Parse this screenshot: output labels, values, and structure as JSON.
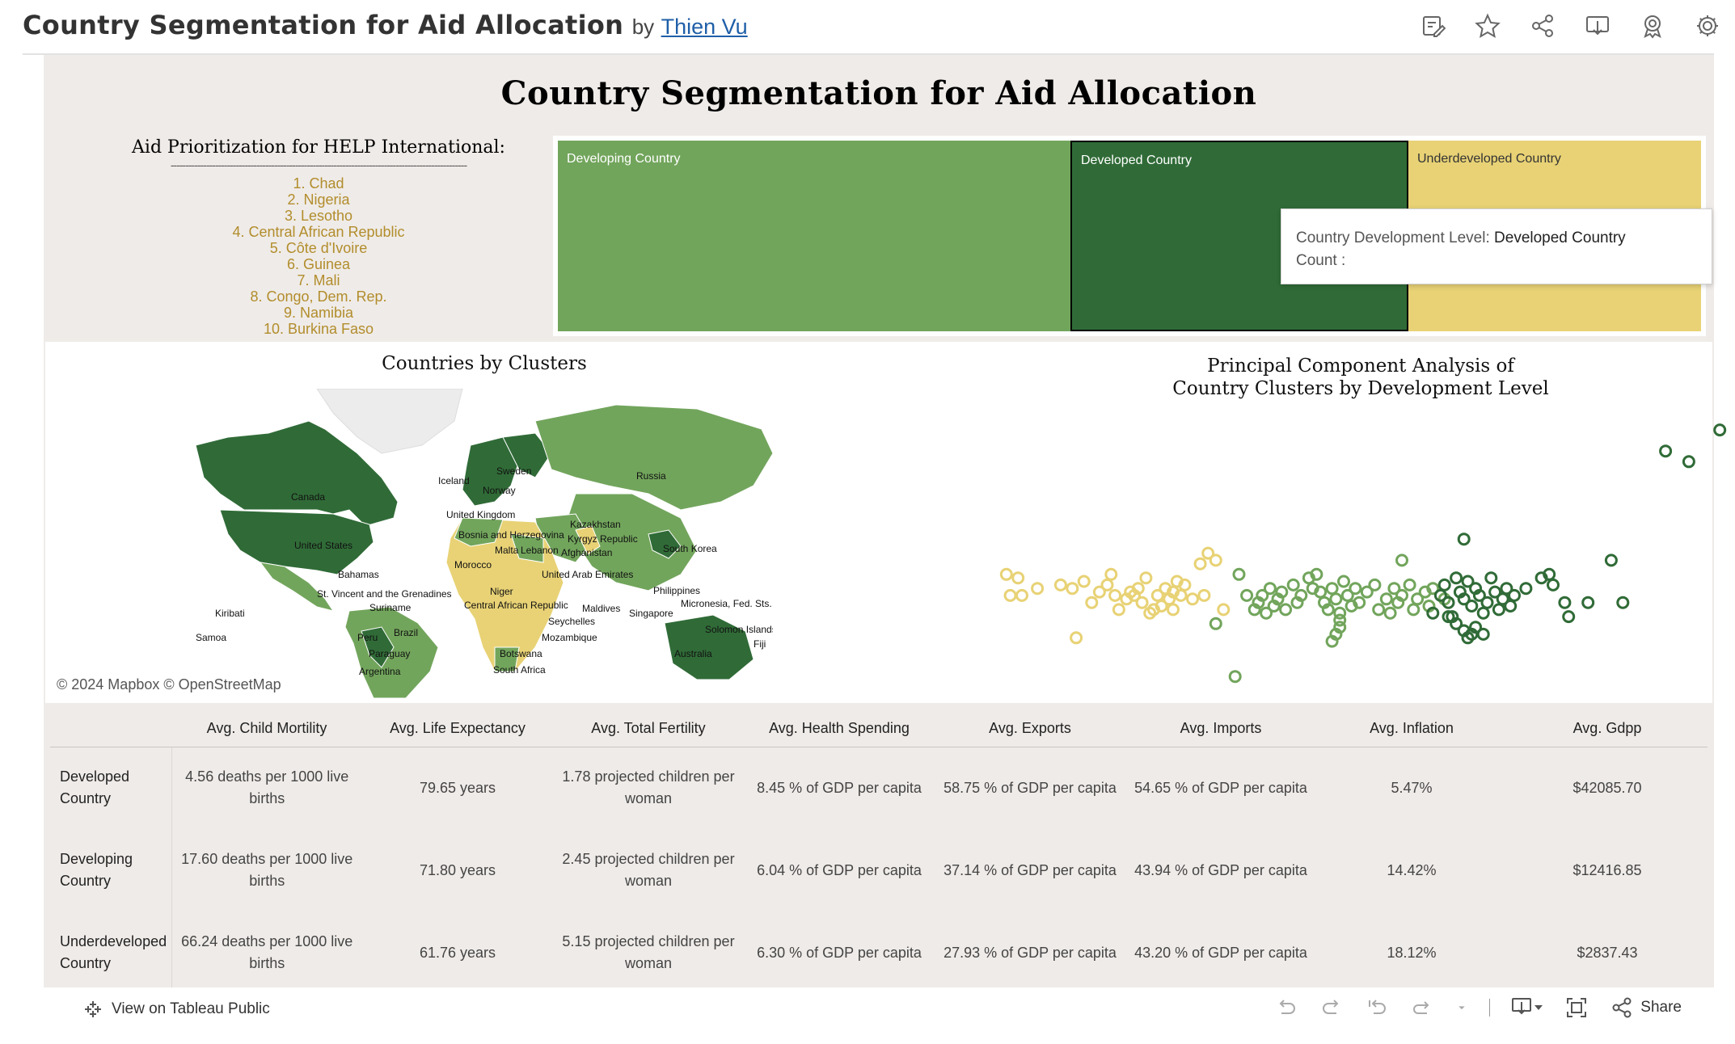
{
  "header": {
    "title": "Country Segmentation for Aid Allocation",
    "by": "by",
    "author": "Thien Vu",
    "icons": [
      "edit-icon",
      "star-icon",
      "share-icon",
      "download-icon",
      "badge-icon",
      "gear-icon"
    ]
  },
  "dashboard": {
    "title": "Country Segmentation for Aid Allocation"
  },
  "priority": {
    "title": "Aid Prioritization for HELP International:",
    "divider": "----------------------------------------------------------------------------------------------------",
    "items": [
      "1. Chad",
      "2. Nigeria",
      "3. Lesotho",
      "4. Central African Republic",
      "5. Côte d'Ivoire",
      "6. Guinea",
      "7. Mali",
      "8. Congo, Dem. Rep.",
      "9. Namibia",
      "10. Burkina Faso"
    ]
  },
  "treemap": {
    "cells": [
      {
        "label": "Developing Country",
        "color": "#72a55c"
      },
      {
        "label": "Developed Country",
        "color": "#306b37"
      },
      {
        "label": "Underdeveloped Country",
        "color": "#e8d275"
      }
    ]
  },
  "tooltip": {
    "level_label": "Country Development Level:",
    "level_value": "Developed Country",
    "count_label": "Count :"
  },
  "map": {
    "title": "Countries by Clusters",
    "credit": "© 2024 Mapbox  © OpenStreetMap",
    "labels": [
      "Canada",
      "United States",
      "Russia",
      "Iceland",
      "Sweden",
      "Norway",
      "United Kingdom",
      "Bosnia and Herzegovina",
      "Kazakhstan",
      "Kyrgyz Republic",
      "Malta",
      "Lebanon",
      "Afghanistan",
      "South Korea",
      "Morocco",
      "United Arab Emirates",
      "Bahamas",
      "St. Vincent and the Grenadines",
      "Niger",
      "Philippines",
      "Kiribati",
      "Suriname",
      "Central African Republic",
      "Maldives",
      "Singapore",
      "Micronesia, Fed. Sts.",
      "Samoa",
      "Brazil",
      "Seychelles",
      "Solomon Islands",
      "Peru",
      "Mozambique",
      "Paraguay",
      "Botswana",
      "Australia",
      "Argentina",
      "South Africa",
      "Fiji"
    ],
    "colors": {
      "developed": "#306b37",
      "developing": "#72a55c",
      "under": "#e8d275"
    }
  },
  "pca": {
    "title_line1": "Principal Component Analysis of",
    "title_line2": "Country Clusters by Development Level"
  },
  "chart_data": {
    "type": "scatter",
    "title": "Principal Component Analysis of Country Clusters by Development Level",
    "xlabel": "",
    "ylabel": "",
    "series": [
      {
        "name": "Underdeveloped Country",
        "color": "#e8d275",
        "points": [
          [
            -4.2,
            1.1
          ],
          [
            -4.05,
            1.05
          ],
          [
            -4.15,
            0.8
          ],
          [
            -4.0,
            0.8
          ],
          [
            -3.8,
            0.9
          ],
          [
            -3.5,
            0.95
          ],
          [
            -3.35,
            0.9
          ],
          [
            -3.2,
            1.0
          ],
          [
            -3.1,
            0.7
          ],
          [
            -3.0,
            0.85
          ],
          [
            -2.9,
            0.95
          ],
          [
            -2.85,
            1.1
          ],
          [
            -2.8,
            0.8
          ],
          [
            -2.75,
            0.6
          ],
          [
            -2.65,
            0.75
          ],
          [
            -2.6,
            0.85
          ],
          [
            -2.5,
            0.9
          ],
          [
            -2.45,
            0.7
          ],
          [
            -2.4,
            1.05
          ],
          [
            -2.3,
            0.6
          ],
          [
            -2.25,
            0.8
          ],
          [
            -2.2,
            0.65
          ],
          [
            -2.15,
            0.9
          ],
          [
            -2.1,
            0.75
          ],
          [
            -2.05,
            0.85
          ],
          [
            -2.0,
            1.0
          ],
          [
            -1.95,
            0.8
          ],
          [
            -1.9,
            0.95
          ],
          [
            -1.8,
            0.75
          ],
          [
            -1.7,
            1.25
          ],
          [
            -1.65,
            0.8
          ],
          [
            -1.6,
            1.4
          ],
          [
            -1.5,
            1.3
          ],
          [
            -3.3,
            0.2
          ],
          [
            -1.4,
            0.6
          ],
          [
            -2.05,
            0.6
          ],
          [
            -2.35,
            0.55
          ],
          [
            -2.55,
            0.8
          ]
        ]
      },
      {
        "name": "Developing Country",
        "color": "#72a55c",
        "points": [
          [
            -1.5,
            0.4
          ],
          [
            -1.2,
            1.1
          ],
          [
            -1.1,
            0.8
          ],
          [
            -1.0,
            0.6
          ],
          [
            -0.95,
            0.7
          ],
          [
            -0.9,
            0.8
          ],
          [
            -0.85,
            0.55
          ],
          [
            -0.8,
            0.9
          ],
          [
            -0.75,
            0.65
          ],
          [
            -0.7,
            0.75
          ],
          [
            -0.65,
            0.85
          ],
          [
            -0.6,
            0.6
          ],
          [
            -0.5,
            0.95
          ],
          [
            -0.45,
            0.7
          ],
          [
            -0.4,
            0.8
          ],
          [
            -0.3,
            1.05
          ],
          [
            -0.25,
            0.9
          ],
          [
            -0.2,
            1.1
          ],
          [
            -0.15,
            0.85
          ],
          [
            -0.1,
            0.7
          ],
          [
            -0.05,
            0.6
          ],
          [
            0.0,
            0.9
          ],
          [
            0.05,
            0.75
          ],
          [
            0.1,
            0.55
          ],
          [
            0.1,
            0.45
          ],
          [
            0.1,
            0.35
          ],
          [
            0.05,
            0.25
          ],
          [
            0.0,
            0.15
          ],
          [
            0.15,
            1.0
          ],
          [
            0.2,
            0.8
          ],
          [
            0.25,
            0.65
          ],
          [
            0.3,
            0.9
          ],
          [
            0.35,
            0.7
          ],
          [
            0.45,
            0.85
          ],
          [
            0.55,
            0.95
          ],
          [
            0.6,
            0.6
          ],
          [
            0.7,
            0.75
          ],
          [
            0.75,
            0.55
          ],
          [
            0.8,
            0.9
          ],
          [
            0.85,
            0.7
          ],
          [
            0.9,
            0.8
          ],
          [
            1.0,
            0.95
          ],
          [
            1.05,
            0.6
          ],
          [
            1.1,
            0.75
          ],
          [
            1.2,
            0.85
          ],
          [
            1.25,
            0.65
          ],
          [
            1.3,
            0.9
          ],
          [
            0.9,
            1.3
          ],
          [
            1.45,
            0.75
          ],
          [
            -1.25,
            -0.35
          ]
        ]
      },
      {
        "name": "Developed Country",
        "color": "#306b37",
        "points": [
          [
            1.3,
            0.55
          ],
          [
            1.4,
            0.8
          ],
          [
            1.45,
            0.95
          ],
          [
            1.5,
            0.7
          ],
          [
            1.55,
            0.5
          ],
          [
            1.6,
            1.05
          ],
          [
            1.65,
            0.85
          ],
          [
            1.7,
            0.75
          ],
          [
            1.7,
            1.6
          ],
          [
            1.75,
            1.0
          ],
          [
            1.8,
            0.65
          ],
          [
            1.85,
            0.9
          ],
          [
            1.9,
            0.8
          ],
          [
            1.95,
            0.55
          ],
          [
            2.0,
            0.7
          ],
          [
            2.05,
            1.05
          ],
          [
            2.1,
            0.85
          ],
          [
            2.15,
            0.6
          ],
          [
            2.2,
            0.75
          ],
          [
            2.25,
            0.9
          ],
          [
            2.3,
            0.65
          ],
          [
            2.35,
            0.8
          ],
          [
            1.5,
            0.5
          ],
          [
            1.6,
            0.4
          ],
          [
            1.7,
            0.3
          ],
          [
            1.75,
            0.2
          ],
          [
            1.8,
            0.25
          ],
          [
            1.85,
            0.35
          ],
          [
            1.95,
            0.25
          ],
          [
            2.5,
            0.9
          ],
          [
            2.7,
            1.05
          ],
          [
            2.8,
            1.1
          ],
          [
            2.85,
            0.95
          ],
          [
            3.0,
            0.7
          ],
          [
            3.05,
            0.5
          ],
          [
            3.3,
            0.7
          ],
          [
            3.6,
            1.3
          ],
          [
            3.75,
            0.7
          ],
          [
            4.6,
            2.7
          ],
          [
            4.3,
            2.85
          ],
          [
            5.0,
            3.15
          ]
        ]
      }
    ],
    "xlim": [
      -4.5,
      5.3
    ],
    "ylim": [
      -0.6,
      3.3
    ]
  },
  "table": {
    "columns": [
      "",
      "Avg. Child Mortility",
      "Avg. Life Expectancy",
      "Avg. Total Fertility",
      "Avg. Health Spending",
      "Avg. Exports",
      "Avg. Imports",
      "Avg. Inflation",
      "Avg. Gdpp"
    ],
    "rows": [
      {
        "name": "Developed Country",
        "cells": [
          "4.56 deaths per 1000 live births",
          "79.65 years",
          "1.78 projected children per woman",
          "8.45 % of GDP per capita",
          "58.75 % of GDP per capita",
          "54.65 % of GDP per capita",
          "5.47%",
          "$42085.70"
        ]
      },
      {
        "name": "Developing Country",
        "cells": [
          "17.60 deaths per 1000 live births",
          "71.80 years",
          "2.45 projected children per woman",
          "6.04 % of GDP per capita",
          "37.14 % of GDP per capita",
          "43.94 % of GDP per capita",
          "14.42%",
          "$12416.85"
        ]
      },
      {
        "name": "Underdeveloped Country",
        "cells": [
          "66.24 deaths per 1000 live births",
          "61.76 years",
          "5.15 projected children per woman",
          "6.30 % of GDP per capita",
          "27.93 % of GDP per capita",
          "43.20 % of GDP per capita",
          "18.12%",
          "$2837.43"
        ]
      }
    ]
  },
  "toolbar": {
    "view_label": "View on Tableau Public",
    "share_label": "Share"
  }
}
